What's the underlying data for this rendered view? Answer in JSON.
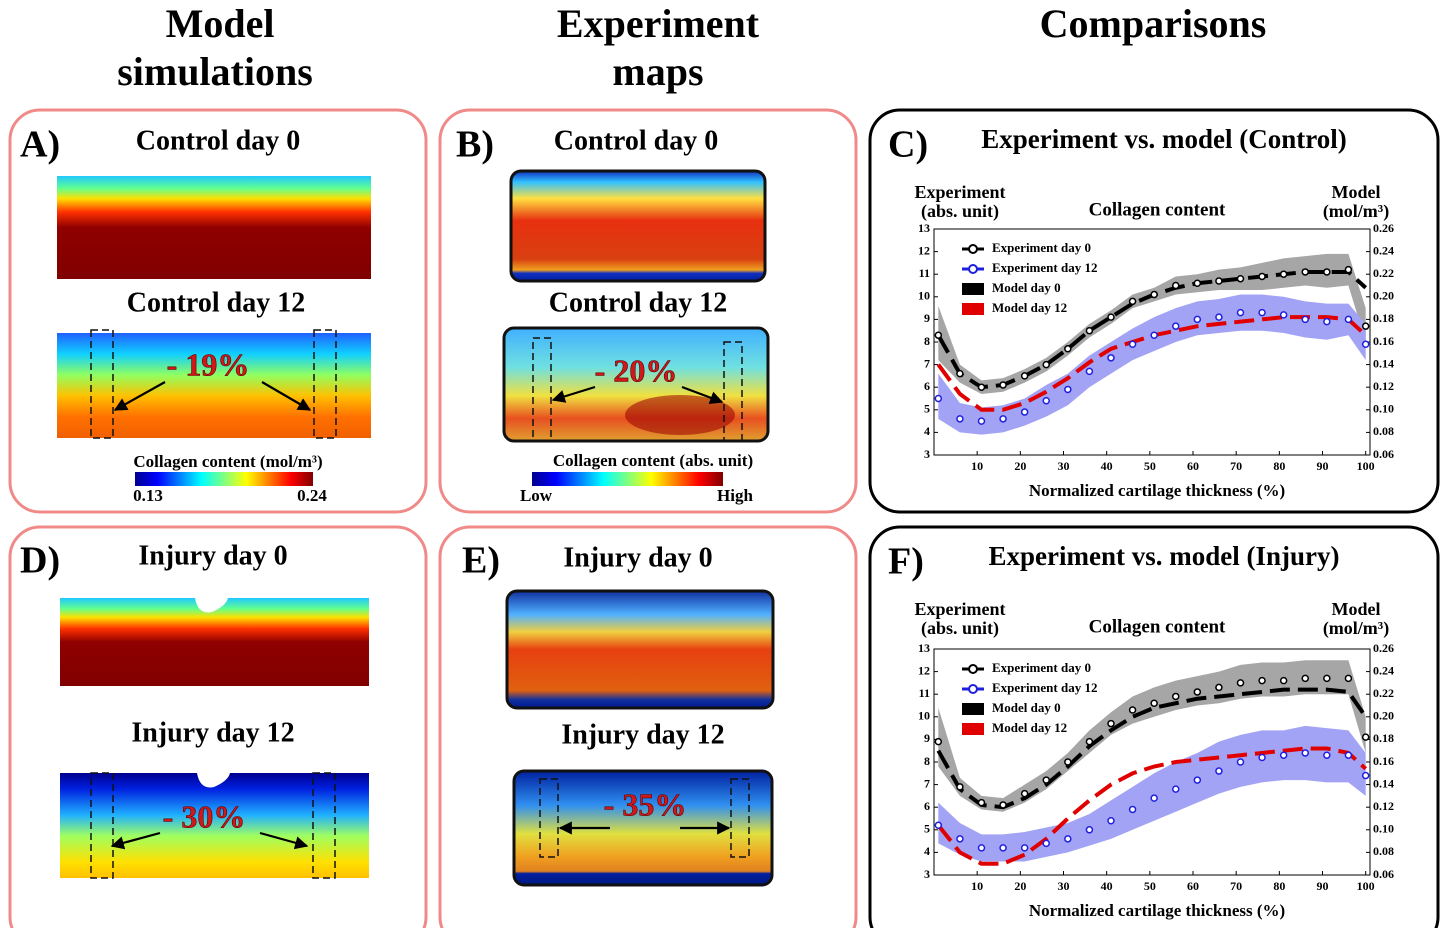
{
  "column_titles": [
    [
      "Model",
      "simulations"
    ],
    [
      "Experiment",
      "maps"
    ],
    [
      "Comparisons"
    ]
  ],
  "panels": [
    {
      "label": "A)",
      "title_top": "Control day 0",
      "title_bottom": "Control day 12",
      "change": "- 19%",
      "colorbar": {
        "label": "Collagen content (mol/m³)",
        "min": 0.13,
        "max": 0.24
      }
    },
    {
      "label": "B)",
      "title_top": "Control day 0",
      "title_bottom": "Control day 12",
      "change": "- 20%",
      "colorbar": {
        "label": "Collagen content (abs. unit)",
        "low": "Low",
        "high": "High"
      }
    },
    {
      "label": "D)",
      "title_top": "Injury day 0",
      "title_bottom": "Injury day 12",
      "change": "- 30%"
    },
    {
      "label": "E)",
      "title_top": "Injury day 0",
      "title_bottom": "Injury day 12",
      "change": "- 35%"
    }
  ],
  "chart_data": [
    {
      "type": "line",
      "panel_label": "C)",
      "title": "Experiment vs. model (Control)",
      "subtitle": "Collagen content",
      "ylabel": [
        "Experiment",
        "(abs. unit)"
      ],
      "y2label": [
        "Model",
        "(mol/m³)"
      ],
      "xlabel": "Normalized cartilage thickness (%)",
      "xlim": [
        0,
        101
      ],
      "xticks": [
        10,
        20,
        30,
        40,
        50,
        60,
        70,
        80,
        90,
        100
      ],
      "ylim": [
        3,
        13
      ],
      "yticks": [
        3,
        4,
        5,
        6,
        7,
        8,
        9,
        10,
        11,
        12,
        13
      ],
      "y2lim": [
        0.06,
        0.26
      ],
      "y2ticks": [
        0.06,
        0.08,
        {
          "value": 0.1,
          "label": "0.10"
        },
        0.12,
        0.14,
        0.16,
        0.18,
        {
          "value": 0.2,
          "label": "0.20"
        },
        0.22,
        0.24,
        0.26
      ],
      "legend": "upper left",
      "x": [
        1,
        6,
        11,
        16,
        21,
        26,
        31,
        36,
        41,
        46,
        51,
        56,
        61,
        66,
        71,
        76,
        81,
        86,
        91,
        96,
        100
      ],
      "series": [
        {
          "name": "Experiment day 0",
          "color": "#000000",
          "band_color": "#a6a6a6",
          "values": [
            8.3,
            6.6,
            6.0,
            6.1,
            6.5,
            7.0,
            7.7,
            8.5,
            9.1,
            9.8,
            10.1,
            10.5,
            10.6,
            10.7,
            10.8,
            10.9,
            11.0,
            11.1,
            11.1,
            11.2,
            8.7
          ],
          "lower": [
            7.2,
            6.2,
            5.7,
            5.8,
            6.2,
            6.7,
            7.4,
            8.2,
            8.8,
            9.5,
            9.8,
            10.1,
            10.2,
            10.3,
            10.3,
            10.3,
            10.4,
            10.5,
            10.4,
            10.5,
            8.0
          ],
          "upper": [
            9.6,
            7.0,
            6.3,
            6.4,
            6.8,
            7.3,
            8.0,
            8.8,
            9.4,
            10.1,
            10.4,
            10.9,
            11.0,
            11.2,
            11.3,
            11.5,
            11.7,
            11.8,
            11.9,
            11.9,
            9.5
          ]
        },
        {
          "name": "Experiment day 12",
          "color": "#1f1fe0",
          "band_color": "#a3a3f5",
          "values": [
            5.5,
            4.6,
            4.5,
            4.6,
            4.9,
            5.4,
            5.9,
            6.7,
            7.3,
            7.9,
            8.3,
            8.7,
            9.0,
            9.1,
            9.3,
            9.3,
            9.2,
            9.0,
            8.9,
            9.0,
            7.9
          ],
          "lower": [
            4.6,
            4.0,
            3.9,
            4.0,
            4.3,
            4.7,
            5.2,
            6.0,
            6.6,
            7.2,
            7.6,
            8.0,
            8.3,
            8.4,
            8.5,
            8.5,
            8.4,
            8.2,
            8.1,
            8.3,
            7.2
          ],
          "upper": [
            6.6,
            5.3,
            5.1,
            5.2,
            5.5,
            6.1,
            6.6,
            7.4,
            8.0,
            8.6,
            9.1,
            9.5,
            9.8,
            9.9,
            10.1,
            10.1,
            10.0,
            9.8,
            9.7,
            9.7,
            8.8
          ]
        },
        {
          "name": "Model day 0",
          "color": "#000000",
          "axis": "y2",
          "values": [
            0.166,
            0.132,
            0.12,
            0.122,
            0.13,
            0.14,
            0.154,
            0.17,
            0.182,
            0.194,
            0.202,
            0.208,
            0.212,
            0.214,
            0.216,
            0.218,
            0.22,
            0.222,
            0.222,
            0.222,
            0.208
          ]
        },
        {
          "name": "Model day 12",
          "color": "#e00000",
          "axis": "y2",
          "values": [
            0.14,
            0.114,
            0.1,
            0.1,
            0.106,
            0.116,
            0.128,
            0.142,
            0.154,
            0.16,
            0.166,
            0.17,
            0.174,
            0.176,
            0.178,
            0.18,
            0.182,
            0.182,
            0.182,
            0.18,
            0.166
          ]
        }
      ]
    },
    {
      "type": "line",
      "panel_label": "F)",
      "title": "Experiment vs. model (Injury)",
      "subtitle": "Collagen content",
      "ylabel": [
        "Experiment",
        "(abs. unit)"
      ],
      "y2label": [
        "Model",
        "(mol/m³)"
      ],
      "xlabel": "Normalized cartilage thickness (%)",
      "xlim": [
        0,
        101
      ],
      "xticks": [
        10,
        20,
        30,
        40,
        50,
        60,
        70,
        80,
        90,
        100
      ],
      "ylim": [
        3,
        13
      ],
      "yticks": [
        3,
        4,
        5,
        6,
        7,
        8,
        9,
        10,
        11,
        12,
        13
      ],
      "y2lim": [
        0.06,
        0.26
      ],
      "y2ticks": [
        0.06,
        0.08,
        {
          "value": 0.1,
          "label": "0.10"
        },
        0.12,
        0.14,
        0.16,
        0.18,
        {
          "value": 0.2,
          "label": "0.20"
        },
        0.22,
        0.24,
        0.26
      ],
      "legend": "upper left",
      "x": [
        1,
        6,
        11,
        16,
        21,
        26,
        31,
        36,
        41,
        46,
        51,
        56,
        61,
        66,
        71,
        76,
        81,
        86,
        91,
        96,
        100
      ],
      "series": [
        {
          "name": "Experiment day 0",
          "color": "#000000",
          "band_color": "#a6a6a6",
          "values": [
            8.9,
            6.9,
            6.2,
            6.1,
            6.6,
            7.2,
            8.0,
            8.9,
            9.7,
            10.3,
            10.6,
            10.9,
            11.1,
            11.3,
            11.5,
            11.6,
            11.6,
            11.7,
            11.7,
            11.7,
            9.1
          ],
          "lower": [
            7.8,
            6.5,
            5.9,
            5.8,
            6.2,
            6.8,
            7.6,
            8.4,
            9.2,
            9.7,
            10.0,
            10.3,
            10.5,
            10.6,
            10.8,
            10.9,
            10.9,
            11.0,
            11.0,
            11.0,
            8.4
          ],
          "upper": [
            10.4,
            7.3,
            6.5,
            6.4,
            7.0,
            7.6,
            8.4,
            9.4,
            10.2,
            10.9,
            11.3,
            11.6,
            11.8,
            12.0,
            12.3,
            12.4,
            12.4,
            12.5,
            12.5,
            12.5,
            10.0
          ]
        },
        {
          "name": "Experiment day 12",
          "color": "#1f1fe0",
          "band_color": "#a3a3f5",
          "values": [
            5.2,
            4.6,
            4.2,
            4.2,
            4.2,
            4.4,
            4.6,
            5.0,
            5.4,
            5.9,
            6.4,
            6.8,
            7.2,
            7.6,
            8.0,
            8.2,
            8.3,
            8.4,
            8.3,
            8.3,
            7.4
          ],
          "lower": [
            4.4,
            3.9,
            3.6,
            3.6,
            3.6,
            3.8,
            4.0,
            4.3,
            4.6,
            5.0,
            5.4,
            5.8,
            6.2,
            6.6,
            6.9,
            7.1,
            7.2,
            7.2,
            7.1,
            7.1,
            6.5
          ],
          "upper": [
            6.2,
            5.3,
            4.8,
            4.8,
            4.9,
            5.1,
            5.3,
            5.7,
            6.3,
            6.9,
            7.5,
            8.0,
            8.4,
            8.9,
            9.2,
            9.4,
            9.4,
            9.6,
            9.5,
            9.4,
            8.4
          ]
        },
        {
          "name": "Model day 0",
          "color": "#000000",
          "axis": "y2",
          "values": [
            0.17,
            0.136,
            0.122,
            0.12,
            0.128,
            0.14,
            0.156,
            0.174,
            0.188,
            0.2,
            0.208,
            0.212,
            0.216,
            0.218,
            0.22,
            0.222,
            0.224,
            0.224,
            0.224,
            0.222,
            0.2
          ]
        },
        {
          "name": "Model day 12",
          "color": "#e00000",
          "axis": "y2",
          "values": [
            0.104,
            0.08,
            0.07,
            0.07,
            0.078,
            0.092,
            0.11,
            0.126,
            0.14,
            0.15,
            0.156,
            0.16,
            0.162,
            0.164,
            0.166,
            0.168,
            0.17,
            0.172,
            0.172,
            0.168,
            0.154
          ]
        }
      ]
    }
  ]
}
